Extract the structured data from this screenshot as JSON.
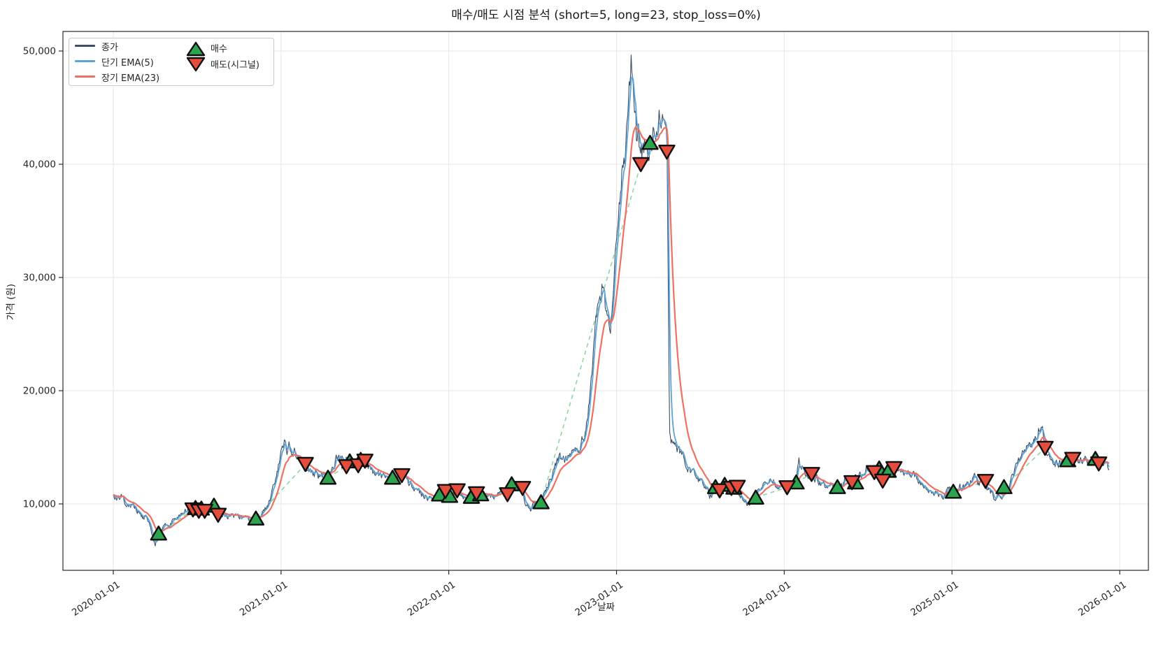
{
  "title": "매수/매도 시점 분석 (short=5, long=23, stop_loss=0%)",
  "axes": {
    "xlabel": "날짜",
    "ylabel": "가격 (원)",
    "x_tick_years": [
      2020,
      2021,
      2022,
      2023,
      2024,
      2025,
      2026
    ],
    "x_tick_labels": [
      "2020-01-01",
      "2021-01-01",
      "2022-01-01",
      "2023-01-01",
      "2024-01-01",
      "2025-01-01",
      "2026-01-01"
    ],
    "y_ticks": [
      10000,
      20000,
      30000,
      40000,
      50000
    ],
    "y_tick_labels": [
      "10,000",
      "20,000",
      "30,000",
      "40,000",
      "50,000"
    ]
  },
  "legend": {
    "close_label": "종가",
    "ema_short_label": "단기 EMA(5)",
    "ema_long_label": "장기 EMA(23)",
    "buy_label": "매수",
    "sell_label": "매도(시그널)"
  },
  "colors": {
    "close": "#3f4f63",
    "ema_short": "#5ba4da",
    "ema_long": "#ee7163",
    "buy": "#2ca34f",
    "sell": "#e44d3b",
    "marker_edge": "#0f0f0f",
    "win_connector": "#8fd6a5",
    "loss_connector": "#f2a69d",
    "grid": "#e6e6e6",
    "spine": "#2b2b2b",
    "text": "#262626"
  },
  "chart_data": {
    "type": "line",
    "title": "매수/매도 시점 분석 (short=5, long=23, stop_loss=0%)",
    "xlabel": "날짜",
    "ylabel": "가격 (원)",
    "x_range_years": [
      2019.7,
      2026.17
    ],
    "ylim": [
      4100,
      51700
    ],
    "grid": true,
    "legend_position": "upper-left",
    "ema_short_span": 5,
    "ema_long_span": 23,
    "series": {
      "close_keypoints": [
        [
          2020.0,
          10650
        ],
        [
          2020.02,
          10450
        ],
        [
          2020.05,
          10500
        ],
        [
          2020.08,
          10150
        ],
        [
          2020.1,
          9850
        ],
        [
          2020.12,
          9950
        ],
        [
          2020.15,
          9350
        ],
        [
          2020.18,
          8800
        ],
        [
          2020.2,
          9000
        ],
        [
          2020.22,
          7900
        ],
        [
          2020.24,
          6700
        ],
        [
          2020.25,
          6300
        ],
        [
          2020.265,
          7100
        ],
        [
          2020.28,
          7500
        ],
        [
          2020.31,
          7950
        ],
        [
          2020.34,
          8350
        ],
        [
          2020.38,
          8900
        ],
        [
          2020.42,
          9300
        ],
        [
          2020.45,
          9450
        ],
        [
          2020.48,
          9550
        ],
        [
          2020.51,
          9400
        ],
        [
          2020.54,
          9420
        ],
        [
          2020.57,
          9400
        ],
        [
          2020.6,
          9860
        ],
        [
          2020.615,
          9500
        ],
        [
          2020.63,
          9100
        ],
        [
          2020.67,
          9050
        ],
        [
          2020.7,
          8950
        ],
        [
          2020.73,
          9000
        ],
        [
          2020.77,
          8800
        ],
        [
          2020.8,
          8650
        ],
        [
          2020.83,
          8600
        ],
        [
          2020.86,
          8850
        ],
        [
          2020.89,
          9300
        ],
        [
          2020.92,
          9900
        ],
        [
          2020.945,
          10800
        ],
        [
          2020.97,
          12300
        ],
        [
          2020.99,
          13800
        ],
        [
          2021.005,
          14600
        ],
        [
          2021.02,
          15700
        ],
        [
          2021.035,
          14200
        ],
        [
          2021.05,
          15200
        ],
        [
          2021.065,
          14400
        ],
        [
          2021.08,
          14700
        ],
        [
          2021.1,
          14000
        ],
        [
          2021.13,
          13600
        ],
        [
          2021.16,
          13200
        ],
        [
          2021.19,
          12800
        ],
        [
          2021.22,
          12450
        ],
        [
          2021.25,
          12500
        ],
        [
          2021.28,
          12400
        ],
        [
          2021.31,
          13100
        ],
        [
          2021.33,
          14200
        ],
        [
          2021.35,
          13800
        ],
        [
          2021.37,
          13900
        ],
        [
          2021.39,
          13750
        ],
        [
          2021.41,
          13850
        ],
        [
          2021.44,
          13600
        ],
        [
          2021.46,
          13450
        ],
        [
          2021.48,
          14000
        ],
        [
          2021.5,
          13750
        ],
        [
          2021.53,
          13200
        ],
        [
          2021.56,
          12750
        ],
        [
          2021.59,
          12400
        ],
        [
          2021.62,
          12200
        ],
        [
          2021.65,
          12150
        ],
        [
          2021.68,
          12400
        ],
        [
          2021.71,
          12500
        ],
        [
          2021.74,
          12250
        ],
        [
          2021.77,
          11800
        ],
        [
          2021.8,
          11350
        ],
        [
          2021.83,
          11000
        ],
        [
          2021.86,
          10650
        ],
        [
          2021.88,
          10300
        ],
        [
          2021.905,
          10650
        ],
        [
          2021.93,
          10800
        ],
        [
          2021.96,
          11050
        ],
        [
          2021.99,
          10800
        ],
        [
          2022.02,
          10950
        ],
        [
          2022.05,
          11200
        ],
        [
          2022.08,
          10700
        ],
        [
          2022.11,
          10500
        ],
        [
          2022.14,
          10700
        ],
        [
          2022.17,
          10950
        ],
        [
          2022.2,
          10800
        ],
        [
          2022.24,
          10900
        ],
        [
          2022.28,
          10850
        ],
        [
          2022.32,
          10800
        ],
        [
          2022.36,
          11500
        ],
        [
          2022.38,
          11800
        ],
        [
          2022.41,
          11550
        ],
        [
          2022.44,
          11350
        ],
        [
          2022.46,
          10100
        ],
        [
          2022.49,
          9650
        ],
        [
          2022.52,
          9950
        ],
        [
          2022.55,
          10300
        ],
        [
          2022.58,
          11200
        ],
        [
          2022.61,
          12200
        ],
        [
          2022.635,
          13500
        ],
        [
          2022.66,
          13900
        ],
        [
          2022.69,
          13850
        ],
        [
          2022.72,
          14300
        ],
        [
          2022.75,
          14500
        ],
        [
          2022.78,
          15100
        ],
        [
          2022.81,
          16200
        ],
        [
          2022.84,
          19500
        ],
        [
          2022.86,
          22600
        ],
        [
          2022.88,
          26900
        ],
        [
          2022.9,
          28200
        ],
        [
          2022.92,
          29900
        ],
        [
          2022.935,
          27300
        ],
        [
          2022.95,
          26200
        ],
        [
          2022.965,
          25600
        ],
        [
          2022.98,
          29000
        ],
        [
          2023.0,
          34000
        ],
        [
          2023.02,
          37500
        ],
        [
          2023.04,
          40500
        ],
        [
          2023.05,
          39600
        ],
        [
          2023.065,
          44000
        ],
        [
          2023.08,
          47500
        ],
        [
          2023.088,
          49300
        ],
        [
          2023.1,
          46000
        ],
        [
          2023.11,
          44200
        ],
        [
          2023.12,
          41800
        ],
        [
          2023.13,
          42600
        ],
        [
          2023.14,
          40200
        ],
        [
          2023.15,
          40800
        ],
        [
          2023.16,
          42100
        ],
        [
          2023.18,
          41600
        ],
        [
          2023.2,
          42400
        ],
        [
          2023.22,
          43300
        ],
        [
          2023.24,
          42900
        ],
        [
          2023.26,
          44100
        ],
        [
          2023.275,
          43400
        ],
        [
          2023.29,
          44800
        ],
        [
          2023.3,
          43200
        ],
        [
          2023.308,
          30500
        ],
        [
          2023.316,
          16200
        ],
        [
          2023.325,
          15100
        ],
        [
          2023.34,
          15700
        ],
        [
          2023.36,
          14900
        ],
        [
          2023.39,
          14300
        ],
        [
          2023.42,
          13500
        ],
        [
          2023.45,
          12800
        ],
        [
          2023.48,
          12200
        ],
        [
          2023.51,
          11800
        ],
        [
          2023.54,
          11300
        ],
        [
          2023.565,
          10600
        ],
        [
          2023.585,
          11300
        ],
        [
          2023.6,
          11500
        ],
        [
          2023.62,
          11200
        ],
        [
          2023.645,
          11700
        ],
        [
          2023.67,
          11500
        ],
        [
          2023.695,
          11350
        ],
        [
          2023.72,
          11100
        ],
        [
          2023.75,
          10700
        ],
        [
          2023.78,
          10150
        ],
        [
          2023.8,
          10250
        ],
        [
          2023.83,
          10600
        ],
        [
          2023.86,
          11200
        ],
        [
          2023.89,
          11900
        ],
        [
          2023.915,
          12250
        ],
        [
          2023.94,
          11900
        ],
        [
          2023.97,
          11600
        ],
        [
          2024.0,
          11500
        ],
        [
          2024.02,
          11420
        ],
        [
          2024.05,
          11700
        ],
        [
          2024.07,
          11900
        ],
        [
          2024.088,
          13900
        ],
        [
          2024.1,
          13200
        ],
        [
          2024.13,
          12800
        ],
        [
          2024.16,
          12600
        ],
        [
          2024.19,
          12300
        ],
        [
          2024.22,
          11700
        ],
        [
          2024.25,
          11400
        ],
        [
          2024.28,
          11550
        ],
        [
          2024.31,
          11450
        ],
        [
          2024.34,
          11700
        ],
        [
          2024.37,
          12200
        ],
        [
          2024.4,
          12050
        ],
        [
          2024.43,
          12000
        ],
        [
          2024.46,
          12500
        ],
        [
          2024.49,
          13100
        ],
        [
          2024.52,
          13400
        ],
        [
          2024.55,
          13250
        ],
        [
          2024.57,
          13200
        ],
        [
          2024.59,
          12700
        ],
        [
          2024.61,
          12750
        ],
        [
          2024.63,
          13050
        ],
        [
          2024.65,
          13250
        ],
        [
          2024.68,
          13150
        ],
        [
          2024.71,
          13000
        ],
        [
          2024.74,
          12700
        ],
        [
          2024.77,
          12450
        ],
        [
          2024.8,
          12150
        ],
        [
          2024.83,
          11850
        ],
        [
          2024.86,
          11500
        ],
        [
          2024.89,
          11200
        ],
        [
          2024.92,
          10850
        ],
        [
          2024.95,
          10950
        ],
        [
          2024.98,
          11100
        ],
        [
          2025.01,
          11050
        ],
        [
          2025.04,
          11350
        ],
        [
          2025.07,
          11600
        ],
        [
          2025.1,
          11850
        ],
        [
          2025.13,
          12300
        ],
        [
          2025.16,
          12000
        ],
        [
          2025.19,
          11900
        ],
        [
          2025.22,
          11350
        ],
        [
          2025.25,
          10750
        ],
        [
          2025.28,
          10600
        ],
        [
          2025.31,
          10950
        ],
        [
          2025.34,
          11700
        ],
        [
          2025.37,
          12700
        ],
        [
          2025.4,
          13800
        ],
        [
          2025.43,
          14800
        ],
        [
          2025.45,
          15150
        ],
        [
          2025.47,
          14900
        ],
        [
          2025.49,
          15400
        ],
        [
          2025.51,
          16000
        ],
        [
          2025.52,
          16650
        ],
        [
          2025.54,
          16250
        ],
        [
          2025.555,
          15000
        ],
        [
          2025.57,
          13900
        ],
        [
          2025.59,
          13550
        ],
        [
          2025.61,
          13400
        ],
        [
          2025.63,
          13750
        ],
        [
          2025.66,
          13500
        ],
        [
          2025.69,
          13870
        ],
        [
          2025.71,
          13950
        ],
        [
          2025.73,
          14100
        ],
        [
          2025.76,
          14150
        ],
        [
          2025.79,
          13950
        ],
        [
          2025.82,
          13750
        ],
        [
          2025.845,
          13850
        ],
        [
          2025.86,
          13600
        ],
        [
          2025.88,
          13500
        ],
        [
          2025.9,
          13400
        ],
        [
          2025.92,
          13350
        ],
        [
          2025.94,
          13400
        ]
      ]
    },
    "trades": [
      [
        2020.27,
        7400,
        2020.475,
        9500
      ],
      [
        2020.49,
        9650,
        2020.51,
        9380
      ],
      [
        2020.525,
        9600,
        2020.545,
        9380
      ],
      [
        2020.6,
        9860,
        2020.625,
        9030
      ],
      [
        2020.85,
        8720,
        2021.145,
        13520
      ],
      [
        2021.28,
        12330,
        2021.39,
        13315
      ],
      [
        2021.41,
        13770,
        2021.46,
        13400
      ],
      [
        2021.475,
        13900,
        2021.5,
        13810
      ],
      [
        2021.665,
        12330,
        2021.72,
        12530
      ],
      [
        2021.945,
        10845,
        2021.98,
        11130
      ],
      [
        2022.005,
        10720,
        2022.05,
        11190
      ],
      [
        2022.135,
        10640,
        2022.165,
        10930
      ],
      [
        2022.19,
        10860,
        2022.35,
        10845
      ],
      [
        2022.375,
        11750,
        2022.44,
        11400
      ],
      [
        2022.55,
        10160,
        2023.145,
        40000
      ],
      [
        2023.2,
        41900,
        2023.3,
        41100
      ],
      [
        2023.59,
        11500,
        2023.615,
        11190
      ],
      [
        2023.645,
        11700,
        2023.685,
        11400
      ],
      [
        2023.7,
        11450,
        2023.72,
        11500
      ],
      [
        2023.83,
        10570,
        2024.017,
        11460
      ],
      [
        2024.071,
        11910,
        2024.163,
        12635
      ],
      [
        2024.317,
        11500,
        2024.404,
        11910
      ],
      [
        2024.425,
        11910,
        2024.537,
        12800
      ],
      [
        2024.566,
        13150,
        2024.587,
        12040
      ],
      [
        2024.62,
        12940,
        2024.654,
        13150
      ],
      [
        2025.008,
        11090,
        2025.2,
        12020
      ],
      [
        2025.31,
        11500,
        2025.555,
        14940
      ],
      [
        2025.69,
        13870,
        2025.72,
        13970
      ],
      [
        2025.855,
        13990,
        2025.875,
        13560
      ]
    ]
  }
}
